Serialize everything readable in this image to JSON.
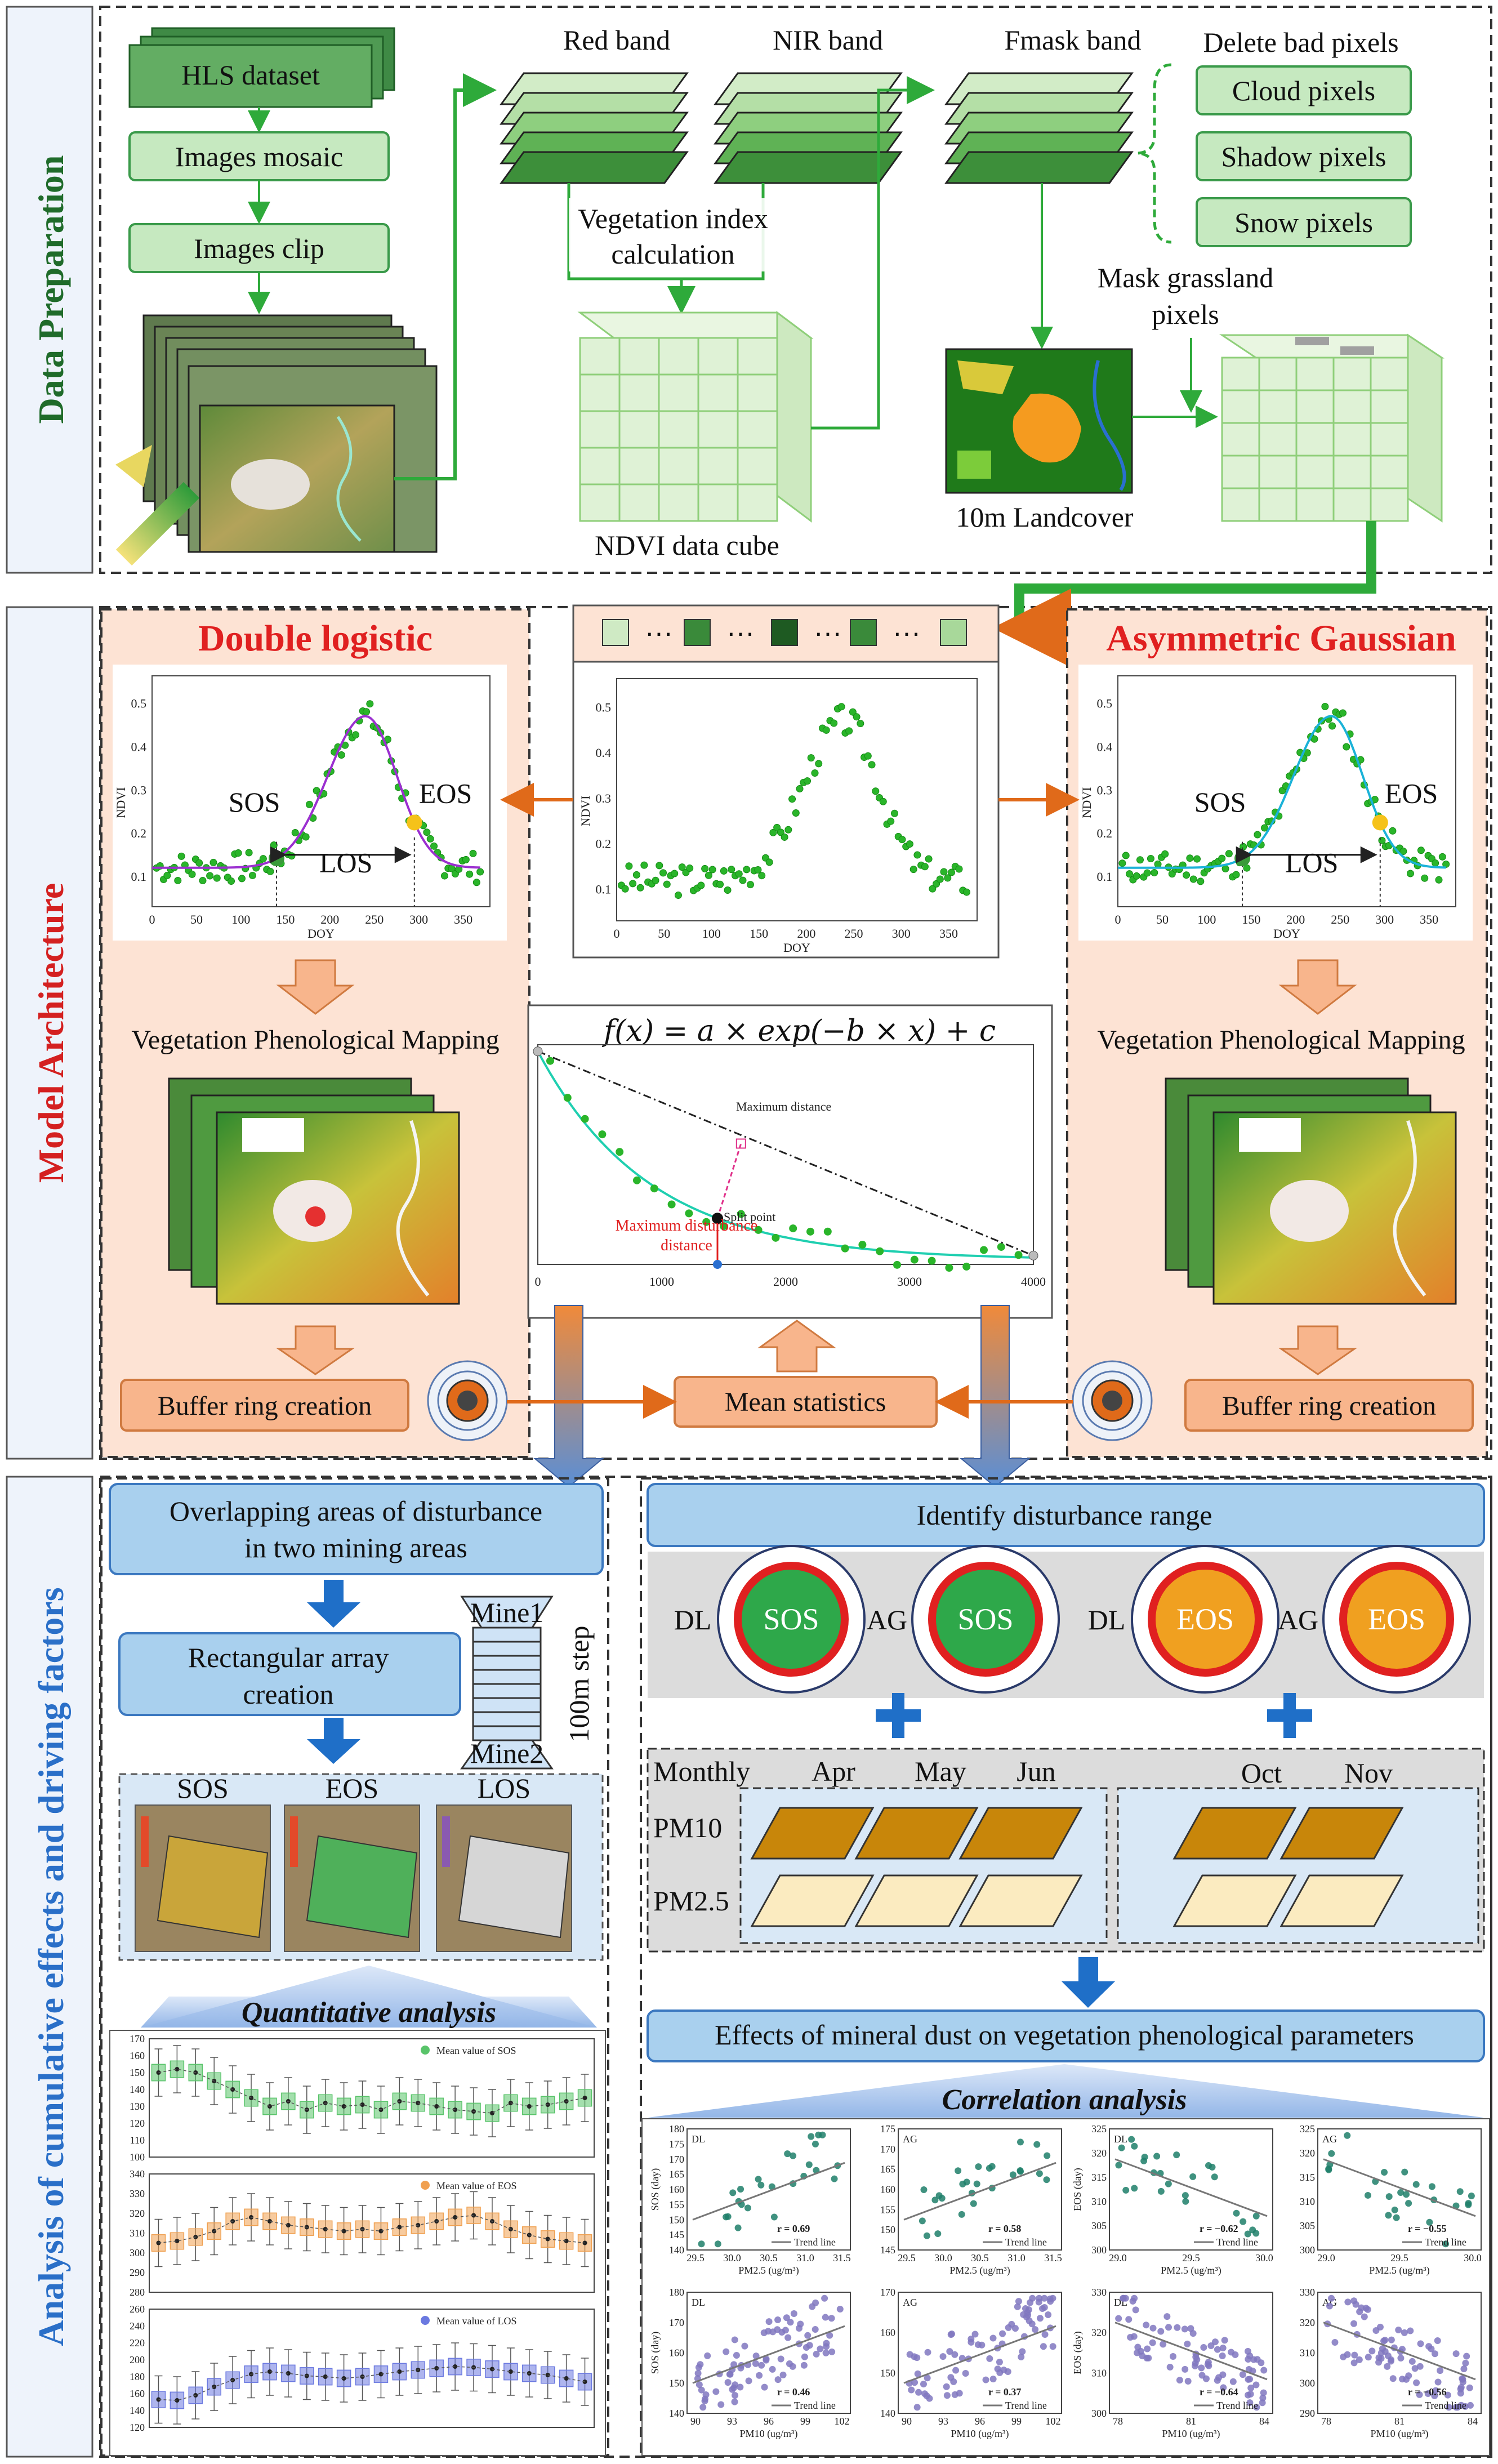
{
  "sections": {
    "data_prep": "Data Preparation",
    "model": "Model Architecture",
    "analysis": "Analysis of cumulative effects and driving factors"
  },
  "prep": {
    "hls": "HLS dataset",
    "mosaic": "Images mosaic",
    "clip": "Images clip",
    "red_band": "Red band",
    "nir_band": "NIR band",
    "fmask_band": "Fmask band",
    "delete_bad": "Delete bad pixels",
    "bad_pixels": [
      "Cloud pixels",
      "Shadow pixels",
      "Snow pixels"
    ],
    "veg_index_1": "Vegetation index",
    "veg_index_2": "calculation",
    "ndvi_cube": "NDVI data cube",
    "mask_1": "Mask grassland",
    "mask_2": "pixels",
    "landcover": "10m Landcover"
  },
  "model": {
    "dl_title": "Double logistic",
    "ag_title": "Asymmetric Gaussian",
    "sos": "SOS",
    "eos": "EOS",
    "los": "LOS",
    "ndvi_axis": "NDVI",
    "doy_axis": "DOY",
    "doy_ticks": [
      "0",
      "50",
      "100",
      "150",
      "200",
      "250",
      "300",
      "350"
    ],
    "ndvi_ticks": [
      "0.1",
      "0.2",
      "0.3",
      "0.4",
      "0.5"
    ],
    "mapping": "Vegetation Phenological Mapping",
    "buffer": "Buffer ring creation",
    "mean_stats": "Mean statistics",
    "formula": "f(x) = a × exp(−b × x) + c",
    "max_distance": "Maximum distance",
    "split_point": "Split point",
    "max_dist_1": "Maximum disturbance",
    "max_dist_2": "distance",
    "dist_ticks": [
      "0",
      "1000",
      "2000",
      "3000",
      "4000"
    ]
  },
  "analysis": {
    "overlap_1": "Overlapping areas of disturbance",
    "overlap_2": "in two mining areas",
    "rect_1": "Rectangular array",
    "rect_2": "creation",
    "mine1": "Mine1",
    "mine2": "Mine2",
    "step": "100m step",
    "map_labels": [
      "SOS",
      "EOS",
      "LOS"
    ],
    "quant": "Quantitative analysis",
    "identify": "Identify disturbance range",
    "dl": "DL",
    "ag": "AG",
    "monthly": "Monthly",
    "months": [
      "Apr",
      "May",
      "Jun",
      "Oct",
      "Nov"
    ],
    "pm10": "PM10",
    "pm25": "PM2.5",
    "effects": "Effects of mineral dust on vegetation phenological parameters",
    "corr": "Correlation analysis",
    "trend": "Trend line"
  },
  "boxplots": [
    {
      "legend": "Mean value of SOS",
      "yticks": [
        "100",
        "110",
        "120",
        "130",
        "140",
        "150",
        "160",
        "170"
      ],
      "means": [
        150,
        152,
        150,
        145,
        140,
        135,
        130,
        133,
        128,
        132,
        130,
        131,
        128,
        133,
        132,
        130,
        128,
        127,
        126,
        132,
        130,
        131,
        133,
        135
      ],
      "color": "#59c46a"
    },
    {
      "legend": "Mean value of EOS",
      "yticks": [
        "280",
        "290",
        "300",
        "310",
        "320",
        "330",
        "340"
      ],
      "means": [
        305,
        306,
        308,
        311,
        316,
        318,
        316,
        314,
        313,
        312,
        311,
        312,
        311,
        313,
        314,
        316,
        318,
        319,
        316,
        312,
        309,
        307,
        306,
        305
      ],
      "color": "#f0a050"
    },
    {
      "legend": "Mean value of LOS",
      "yticks": [
        "120",
        "140",
        "160",
        "180",
        "200",
        "220",
        "240",
        "260"
      ],
      "means": [
        153,
        152,
        158,
        168,
        176,
        183,
        186,
        184,
        181,
        180,
        178,
        180,
        183,
        186,
        188,
        190,
        192,
        191,
        189,
        186,
        184,
        182,
        178,
        174
      ],
      "color": "#6b79e0"
    }
  ],
  "scatter": [
    {
      "tag": "DL",
      "ylabel": "SOS (day)",
      "xlabel": "PM2.5 (ug/m³)",
      "r": "r = 0.69",
      "xt": [
        "29.5",
        "30.0",
        "30.5",
        "31.0",
        "31.5"
      ],
      "yt": [
        "140",
        "145",
        "150",
        "155",
        "160",
        "165",
        "170",
        "175",
        "180"
      ],
      "color": "#1f7f6a",
      "slope": 1
    },
    {
      "tag": "AG",
      "ylabel": "",
      "xlabel": "PM2.5 (ug/m³)",
      "r": "r = 0.58",
      "xt": [
        "29.5",
        "30.0",
        "30.5",
        "31.0",
        "31.5"
      ],
      "yt": [
        "145",
        "150",
        "155",
        "160",
        "165",
        "170",
        "175"
      ],
      "color": "#1f7f6a",
      "slope": 1
    },
    {
      "tag": "DL",
      "ylabel": "EOS (day)",
      "xlabel": "PM2.5 (ug/m³)",
      "r": "r = −0.62",
      "xt": [
        "29.0",
        "29.5",
        "30.0"
      ],
      "yt": [
        "300",
        "305",
        "310",
        "315",
        "320",
        "325"
      ],
      "color": "#1f7f6a",
      "slope": -1
    },
    {
      "tag": "AG",
      "ylabel": "",
      "xlabel": "PM2.5 (ug/m³)",
      "r": "r = −0.55",
      "xt": [
        "29.0",
        "29.5",
        "30.0"
      ],
      "yt": [
        "300",
        "305",
        "310",
        "315",
        "320",
        "325"
      ],
      "color": "#1f7f6a",
      "slope": -1
    },
    {
      "tag": "DL",
      "ylabel": "SOS (day)",
      "xlabel": "PM10 (ug/m³)",
      "r": "r = 0.46",
      "xt": [
        "90",
        "93",
        "96",
        "99",
        "102"
      ],
      "yt": [
        "140",
        "150",
        "160",
        "170",
        "180"
      ],
      "color": "#8077c0",
      "slope": 1
    },
    {
      "tag": "AG",
      "ylabel": "",
      "xlabel": "PM10 (ug/m³)",
      "r": "r = 0.37",
      "xt": [
        "90",
        "93",
        "96",
        "99",
        "102"
      ],
      "yt": [
        "140",
        "150",
        "160",
        "170"
      ],
      "color": "#8077c0",
      "slope": 1
    },
    {
      "tag": "DL",
      "ylabel": "EOS (day)",
      "xlabel": "PM10 (ug/m³)",
      "r": "r = −0.64",
      "xt": [
        "78",
        "81",
        "84"
      ],
      "yt": [
        "300",
        "310",
        "320",
        "330"
      ],
      "color": "#8077c0",
      "slope": -1
    },
    {
      "tag": "AG",
      "ylabel": "",
      "xlabel": "PM10 (ug/m³)",
      "r": "r = −0.56",
      "xt": [
        "78",
        "81",
        "84"
      ],
      "yt": [
        "290",
        "300",
        "310",
        "320",
        "330"
      ],
      "color": "#8077c0",
      "slope": -1
    }
  ],
  "colors": {
    "green_box": "#c6e9c0",
    "green_edge": "#3a9a4a",
    "peach": "#f9d5c2",
    "orange_box": "#f8b58c",
    "blue_box": "#a9d0ee",
    "red_title": "#e02020",
    "arrow_orange": "#e06a1a",
    "dust_dark": "#c8860a",
    "dust_light": "#fbebc0"
  }
}
